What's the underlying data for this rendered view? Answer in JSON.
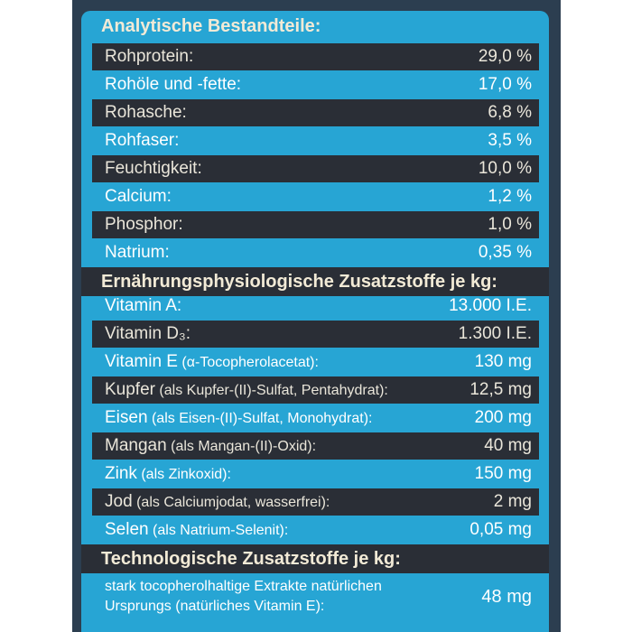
{
  "sections": [
    {
      "title": "Analytische Bestandteile:",
      "rows": [
        {
          "name": "Rohprotein:",
          "value": "29,0 %"
        },
        {
          "name": "Rohöle und -fette:",
          "value": "17,0 %"
        },
        {
          "name": "Rohasche:",
          "value": "6,8 %"
        },
        {
          "name": "Rohfaser:",
          "value": "3,5 %"
        },
        {
          "name": "Feuchtigkeit:",
          "value": "10,0 %"
        },
        {
          "name": "Calcium:",
          "value": "1,2 %"
        },
        {
          "name": "Phosphor:",
          "value": "1,0 %"
        },
        {
          "name": "Natrium:",
          "value": "0,35 %"
        }
      ]
    },
    {
      "title": "Ernährungsphysiologische Zusatzstoffe je kg:",
      "rows": [
        {
          "name": "Vitamin A:",
          "note": "",
          "value": "13.000 I.E."
        },
        {
          "name": "Vitamin D₃:",
          "note": "",
          "value": "1.300 I.E."
        },
        {
          "name": "Vitamin E",
          "note": " (α-Tocopherolacetat):",
          "value": "130 mg"
        },
        {
          "name": "Kupfer",
          "note": " (als Kupfer-(II)-Sulfat, Pentahydrat):",
          "value": "12,5 mg"
        },
        {
          "name": "Eisen",
          "note": " (als Eisen-(II)-Sulfat, Monohydrat):",
          "value": "200 mg"
        },
        {
          "name": "Mangan",
          "note": " (als Mangan-(II)-Oxid):",
          "value": "40 mg"
        },
        {
          "name": "Zink",
          "note": " (als Zinkoxid):",
          "value": "150 mg"
        },
        {
          "name": "Jod",
          "note": " (als Calciumjodat, wasserfrei):",
          "value": "2 mg"
        },
        {
          "name": "Selen",
          "note": " (als Natrium-Selenit):",
          "value": "0,05 mg"
        }
      ]
    },
    {
      "title": "Technologische Zusatzstoffe je kg:",
      "rows": [
        {
          "name": "stark tocopherolhaltige Extrakte natürlichen Ursprungs (natürliches Vitamin E):",
          "value": "48 mg"
        }
      ]
    }
  ]
}
